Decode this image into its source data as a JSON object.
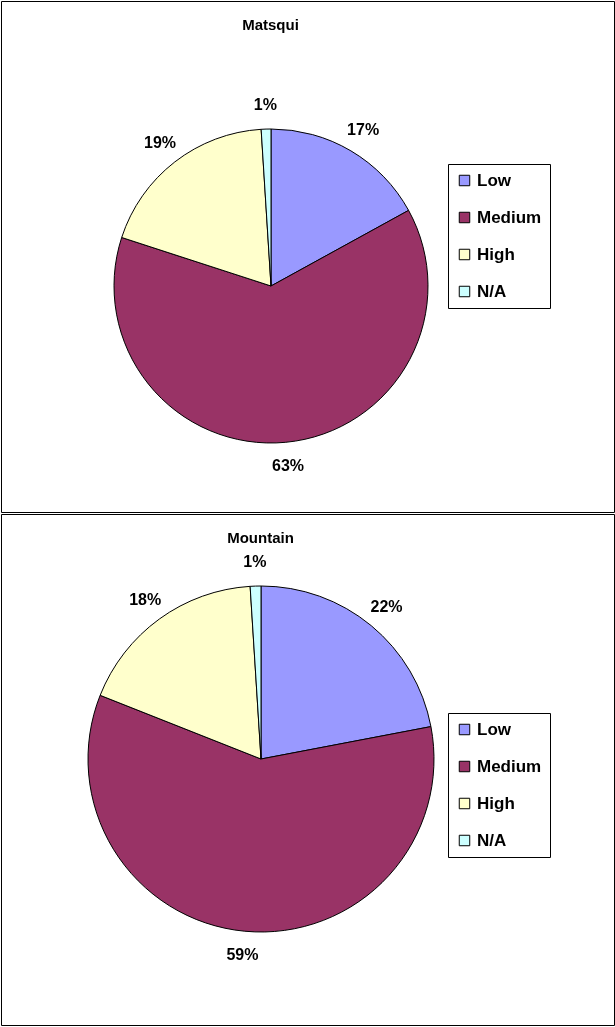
{
  "chart_data": [
    {
      "type": "pie",
      "title": "Matsqui",
      "categories": [
        "Low",
        "Medium",
        "High",
        "N/A"
      ],
      "values": [
        17,
        63,
        19,
        1
      ],
      "colors": [
        "#9999ff",
        "#993366",
        "#ffffcc",
        "#ccffff"
      ],
      "value_labels": [
        "17%",
        "63%",
        "19%",
        "1%"
      ],
      "legend": "right"
    },
    {
      "type": "pie",
      "title": "Mountain",
      "categories": [
        "Low",
        "Medium",
        "High",
        "N/A"
      ],
      "values": [
        22,
        59,
        18,
        1
      ],
      "colors": [
        "#9999ff",
        "#993366",
        "#ffffcc",
        "#ccffff"
      ],
      "value_labels": [
        "22%",
        "59%",
        "18%",
        "1%"
      ],
      "legend": "right"
    }
  ]
}
